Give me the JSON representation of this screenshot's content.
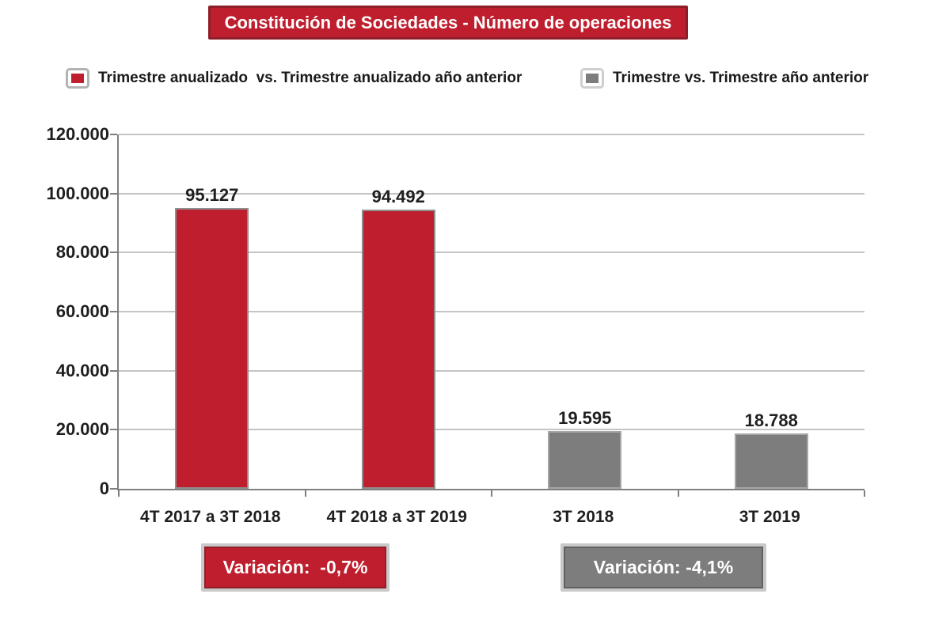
{
  "title": "Constitución de Sociedades - Número de operaciones",
  "legend": {
    "items": [
      {
        "label": "Trimestre anualizado  vs. Trimestre anualizado año anterior",
        "swatch": "red-swatch-icon"
      },
      {
        "label": "Trimestre vs. Trimestre año anterior",
        "swatch": "gray-swatch-icon"
      }
    ]
  },
  "chart_data": {
    "type": "bar",
    "title": "Constitución de Sociedades - Número de operaciones",
    "categories": [
      "4T 2017 a 3T 2018",
      "4T 2018 a 3T 2019",
      "3T 2018",
      "3T 2019"
    ],
    "values": [
      95127,
      94492,
      19595,
      18788
    ],
    "value_labels": [
      "95.127",
      "94.492",
      "19.595",
      "18.788"
    ],
    "bar_colors": [
      "red",
      "red",
      "gray",
      "gray"
    ],
    "xlabel": "",
    "ylabel": "",
    "ylim": [
      0,
      120000
    ],
    "ytick_step": 20000,
    "ytick_labels": [
      "0",
      "20.000",
      "40.000",
      "60.000",
      "80.000",
      "100.000",
      "120.000"
    ],
    "grid": true,
    "legend_position": "top",
    "annotations": [
      "Variación:  -0,7%",
      "Variación: -4,1%"
    ]
  },
  "variation": {
    "red_label": "Variación:  -0,7%",
    "gray_label": "Variación: -4,1%"
  },
  "colors": {
    "red": "#be1e2d",
    "red_border": "#8e1f29",
    "gray": "#7d7d7d",
    "gray_border": "#a6a6a6",
    "silver_frame": "#c9c9c9",
    "grid": "#c4c4c4",
    "axis": "#7f7f7f",
    "text": "#1f1f1f"
  }
}
